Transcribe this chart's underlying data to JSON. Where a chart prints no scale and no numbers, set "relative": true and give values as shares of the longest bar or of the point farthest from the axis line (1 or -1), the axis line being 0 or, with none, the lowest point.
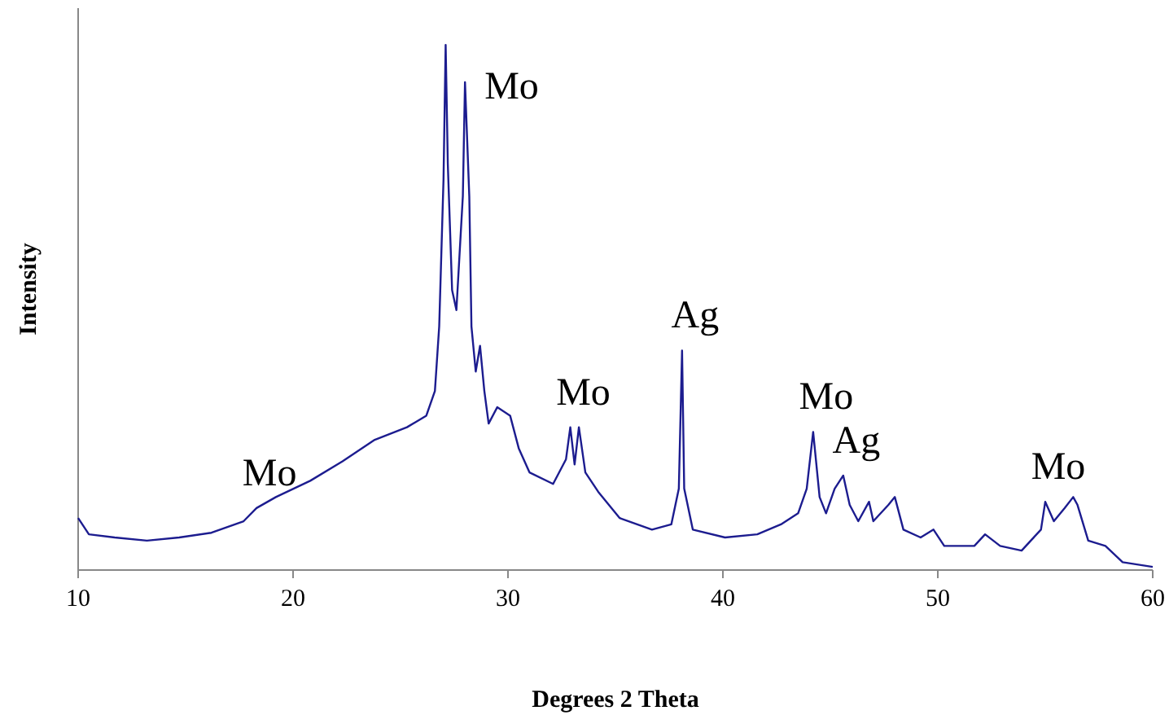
{
  "chart_data": {
    "type": "line",
    "relative": true,
    "xlabel": "Degrees 2 Theta",
    "ylabel": "Intensity",
    "xlim": [
      10,
      60
    ],
    "xticks": [
      10,
      20,
      30,
      40,
      50,
      60
    ],
    "grid": false,
    "legend": false,
    "marker": "none",
    "line_style": "solid",
    "x": [
      10,
      10.5,
      11.7,
      13.2,
      14.7,
      16.2,
      17.7,
      18.3,
      19.2,
      20.8,
      22.3,
      23.8,
      25.3,
      26.2,
      26.6,
      26.8,
      27.0,
      27.1,
      27.2,
      27.4,
      27.6,
      27.9,
      28.0,
      28.2,
      28.3,
      28.5,
      28.7,
      28.9,
      29.1,
      29.5,
      30.1,
      30.5,
      31.0,
      32.1,
      32.7,
      32.9,
      33.1,
      33.3,
      33.6,
      34.2,
      35.2,
      36.7,
      37.6,
      37.95,
      38.1,
      38.2,
      38.6,
      40.1,
      41.6,
      42.7,
      43.5,
      43.9,
      44.2,
      44.5,
      44.8,
      45.2,
      45.6,
      45.9,
      46.3,
      46.8,
      47.0,
      47.7,
      48.0,
      48.4,
      49.2,
      49.8,
      50.3,
      51.7,
      52.2,
      52.9,
      53.9,
      54.8,
      55.0,
      55.4,
      55.9,
      56.3,
      56.5,
      57.0,
      57.8,
      58.6,
      60
    ],
    "series": [
      {
        "color": "#1c1c8f",
        "values": [
          0.099,
          0.068,
          0.062,
          0.056,
          0.062,
          0.071,
          0.093,
          0.118,
          0.139,
          0.17,
          0.207,
          0.248,
          0.272,
          0.294,
          0.341,
          0.464,
          0.743,
          1,
          0.774,
          0.533,
          0.495,
          0.712,
          0.929,
          0.712,
          0.464,
          0.378,
          0.427,
          0.341,
          0.279,
          0.31,
          0.294,
          0.232,
          0.186,
          0.164,
          0.211,
          0.272,
          0.201,
          0.272,
          0.186,
          0.149,
          0.099,
          0.077,
          0.087,
          0.155,
          0.418,
          0.155,
          0.077,
          0.062,
          0.068,
          0.087,
          0.108,
          0.155,
          0.263,
          0.139,
          0.108,
          0.155,
          0.18,
          0.124,
          0.093,
          0.13,
          0.093,
          0.124,
          0.139,
          0.077,
          0.062,
          0.077,
          0.046,
          0.046,
          0.068,
          0.046,
          0.037,
          0.077,
          0.13,
          0.093,
          0.118,
          0.139,
          0.124,
          0.056,
          0.046,
          0.015,
          0.006
        ]
      }
    ],
    "annotations": [
      {
        "text": "Mo",
        "x": 18.3,
        "y": 0.118
      },
      {
        "text": "Mo",
        "x": 28.0,
        "y": 0.929
      },
      {
        "text": "Mo",
        "x": 32.9,
        "y": 0.272
      },
      {
        "text": "Ag",
        "x": 38.1,
        "y": 0.418
      },
      {
        "text": "Mo",
        "x": 44.2,
        "y": 0.263
      },
      {
        "text": "Ag",
        "x": 45.6,
        "y": 0.18
      },
      {
        "text": "Mo",
        "x": 55.0,
        "y": 0.13
      }
    ]
  }
}
